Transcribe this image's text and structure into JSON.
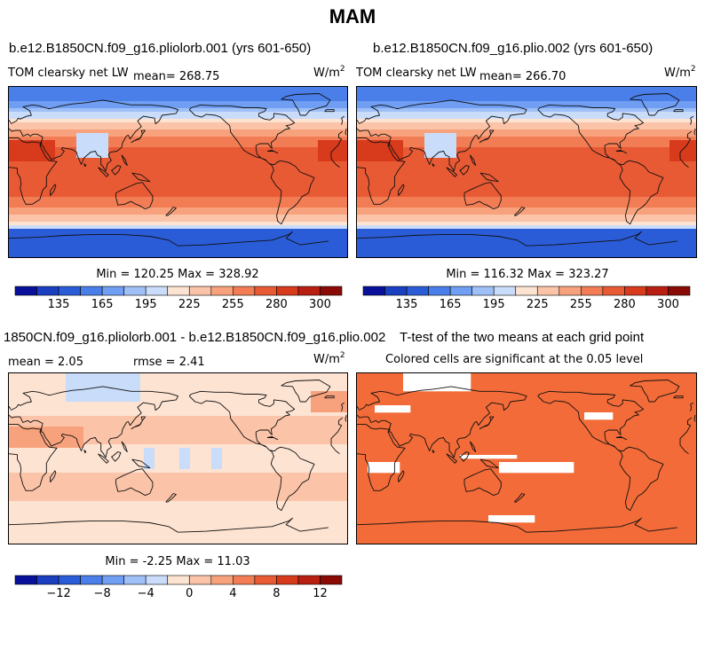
{
  "title": "MAM",
  "panels": [
    {
      "title": "b.e12.B1850CN.f09_g16.pliolorb.001 (yrs 601-650)",
      "variable": "TOM clearsky net LW",
      "mean_text": "mean= 268.75",
      "units": "W/m",
      "units_exp": "2",
      "stats": "Min = 120.25 Max = 328.92",
      "field": "pliolorb"
    },
    {
      "title": "b.e12.B1850CN.f09_g16.plio.002 (yrs 601-650)",
      "variable": "TOM clearsky net LW",
      "mean_text": "mean= 266.70",
      "units": "W/m",
      "units_exp": "2",
      "stats": "Min = 116.32 Max = 323.27",
      "field": "plio"
    },
    {
      "title": "1850CN.f09_g16.pliolorb.001 - b.e12.B1850CN.f09_g16.plio.002",
      "mean_text": "mean =   2.05",
      "rmse_text": "rmse =   2.41",
      "units": "W/m",
      "units_exp": "2",
      "stats": "Min =  -2.25 Max =  11.03",
      "field": "difference"
    },
    {
      "title": "T-test of the two means at each grid point",
      "subtitle": "Colored cells are significant at the 0.05 level",
      "field": "ttest"
    }
  ],
  "colorbar_abs": {
    "colors": [
      "#08109a",
      "#1a3fc0",
      "#2b5cd8",
      "#4a7ee8",
      "#6f9ef2",
      "#9fc0f7",
      "#c9dcfa",
      "#fde3d2",
      "#fbc4a8",
      "#f7a27c",
      "#f27d55",
      "#e85a34",
      "#d83a1c",
      "#b81f10",
      "#8a0a05"
    ],
    "labels": [
      "135",
      "165",
      "195",
      "225",
      "255",
      "280",
      "300"
    ]
  },
  "colorbar_diff": {
    "colors": [
      "#08109a",
      "#1a3fc0",
      "#2b5cd8",
      "#4a7ee8",
      "#6f9ef2",
      "#9fc0f7",
      "#c9dcfa",
      "#fde3d2",
      "#fbc4a8",
      "#f7a27c",
      "#f27d55",
      "#e85a34",
      "#d83a1c",
      "#b81f10",
      "#8a0a05"
    ],
    "labels": [
      "−12",
      "−8",
      "−4",
      "0",
      "4",
      "8",
      "12"
    ]
  },
  "ttest_color": "#f26b38"
}
